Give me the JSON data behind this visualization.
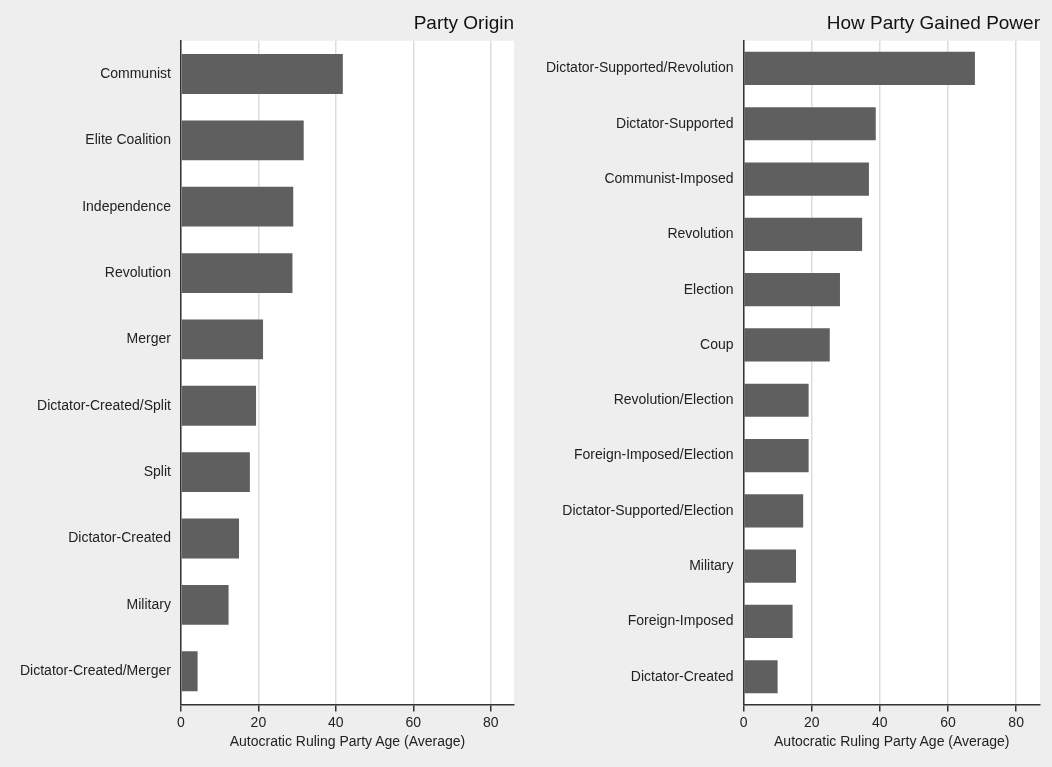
{
  "chart_data": [
    {
      "type": "bar",
      "orientation": "horizontal",
      "title": "Party Origin",
      "xlabel": "Autocratic Ruling Party Age (Average)",
      "categories": [
        "Communist",
        "Elite Coalition",
        "Independence",
        "Revolution",
        "Merger",
        "Dictator-Created/Split",
        "Split",
        "Dictator-Created",
        "Military",
        "Dictator-Created/Merger"
      ],
      "values": [
        41.8,
        31.7,
        29.0,
        28.8,
        21.2,
        19.4,
        17.8,
        15.0,
        12.3,
        4.3
      ],
      "color": "#5f5f5f",
      "xlim": [
        0,
        86
      ],
      "xticks": [
        0,
        20,
        40,
        60,
        80
      ],
      "grid": "x"
    },
    {
      "type": "bar",
      "orientation": "horizontal",
      "title": "How Party Gained Power",
      "xlabel": "Autocratic Ruling Party Age (Average)",
      "categories": [
        "Dictator-Supported/Revolution",
        "Dictator-Supported",
        "Communist-Imposed",
        "Revolution",
        "Election",
        "Coup",
        "Revolution/Election",
        "Foreign-Imposed/Election",
        "Dictator-Supported/Election",
        "Military",
        "Foreign-Imposed",
        "Dictator-Created"
      ],
      "values": [
        67.9,
        38.8,
        36.8,
        34.8,
        28.3,
        25.3,
        19.1,
        19.1,
        17.5,
        15.4,
        14.4,
        10.0
      ],
      "color": "#5f5f5f",
      "xlim": [
        0,
        87
      ],
      "xticks": [
        0,
        20,
        40,
        60,
        80
      ],
      "grid": "x"
    }
  ]
}
